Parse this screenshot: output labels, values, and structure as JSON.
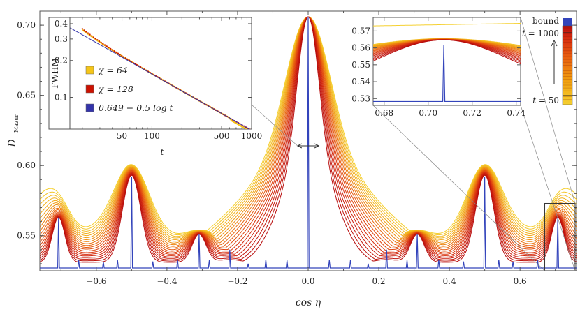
{
  "chart_data": [
    {
      "type": "line",
      "xlabel": "cos η",
      "ylabel": "D_Mazur",
      "xlim": [
        -0.76,
        0.76
      ],
      "ylim": [
        0.525,
        0.71
      ],
      "x_ticks": [
        -0.6,
        -0.4,
        -0.2,
        0.0,
        0.2,
        0.4,
        0.6
      ],
      "x_tick_labels": [
        "−0.6",
        "−0.4",
        "−0.2",
        "0.0",
        "0.2",
        "0.4",
        "0.6"
      ],
      "y_ticks": [
        0.55,
        0.6,
        0.65,
        0.7
      ],
      "y_tick_labels": [
        "0.55",
        "0.60",
        "0.65",
        "0.70"
      ],
      "series_count": 20,
      "time_range": [
        50,
        1000
      ],
      "bound_baseline": 0.527,
      "bound_peaks": [
        {
          "x": -0.707,
          "y": 0.563
        },
        {
          "x": -0.5,
          "y": 0.592
        },
        {
          "x": -0.309,
          "y": 0.551
        },
        {
          "x": -0.222,
          "y": 0.54
        },
        {
          "x": 0.0,
          "y": 0.706
        },
        {
          "x": 0.222,
          "y": 0.54
        },
        {
          "x": 0.309,
          "y": 0.551
        },
        {
          "x": 0.5,
          "y": 0.592
        },
        {
          "x": 0.707,
          "y": 0.563
        }
      ],
      "fwhm_annotation_x": [
        -0.03,
        0.03
      ],
      "zoom_box_x": [
        0.67,
        0.76
      ],
      "zoom_box_y": [
        0.525,
        0.573
      ]
    },
    {
      "type": "line",
      "xlabel": "t",
      "ylabel": "FWHM",
      "x_scale": "log",
      "y_scale": "log",
      "xlim": [
        15,
        1000
      ],
      "ylim": [
        0.055,
        0.45
      ],
      "x_tick_labels": [
        "50",
        "100",
        "500",
        "1000"
      ],
      "x_ticks": [
        50,
        100,
        500,
        1000
      ],
      "y_tick_labels": [
        "0.4",
        "0.3",
        "0.2",
        "0.1"
      ],
      "y_ticks": [
        0.4,
        0.3,
        0.2,
        0.1
      ],
      "series": [
        {
          "name": "χ = 64",
          "color": "#f5c518"
        },
        {
          "name": "χ = 128",
          "color": "#cc1100"
        },
        {
          "name": "0.649 − 0.5 log t",
          "color": "#3333aa"
        }
      ]
    },
    {
      "type": "line",
      "xlim": [
        0.675,
        0.742
      ],
      "ylim": [
        0.526,
        0.578
      ],
      "x_ticks": [
        0.68,
        0.7,
        0.72,
        0.74
      ],
      "x_tick_labels": [
        "0.68",
        "0.70",
        "0.72",
        "0.74"
      ],
      "y_ticks": [
        0.53,
        0.54,
        0.55,
        0.56,
        0.57
      ],
      "y_tick_labels": [
        "0.53",
        "0.54",
        "0.55",
        "0.56",
        "0.57"
      ]
    }
  ],
  "colorbar": {
    "top_label": "bound",
    "upper_label": "t = 1000",
    "lower_label": "t = 50",
    "colors": [
      "#f5d030",
      "#f0a010",
      "#e86010",
      "#d52a0e",
      "#b80d0d"
    ],
    "bound_color": "#3344bb"
  }
}
